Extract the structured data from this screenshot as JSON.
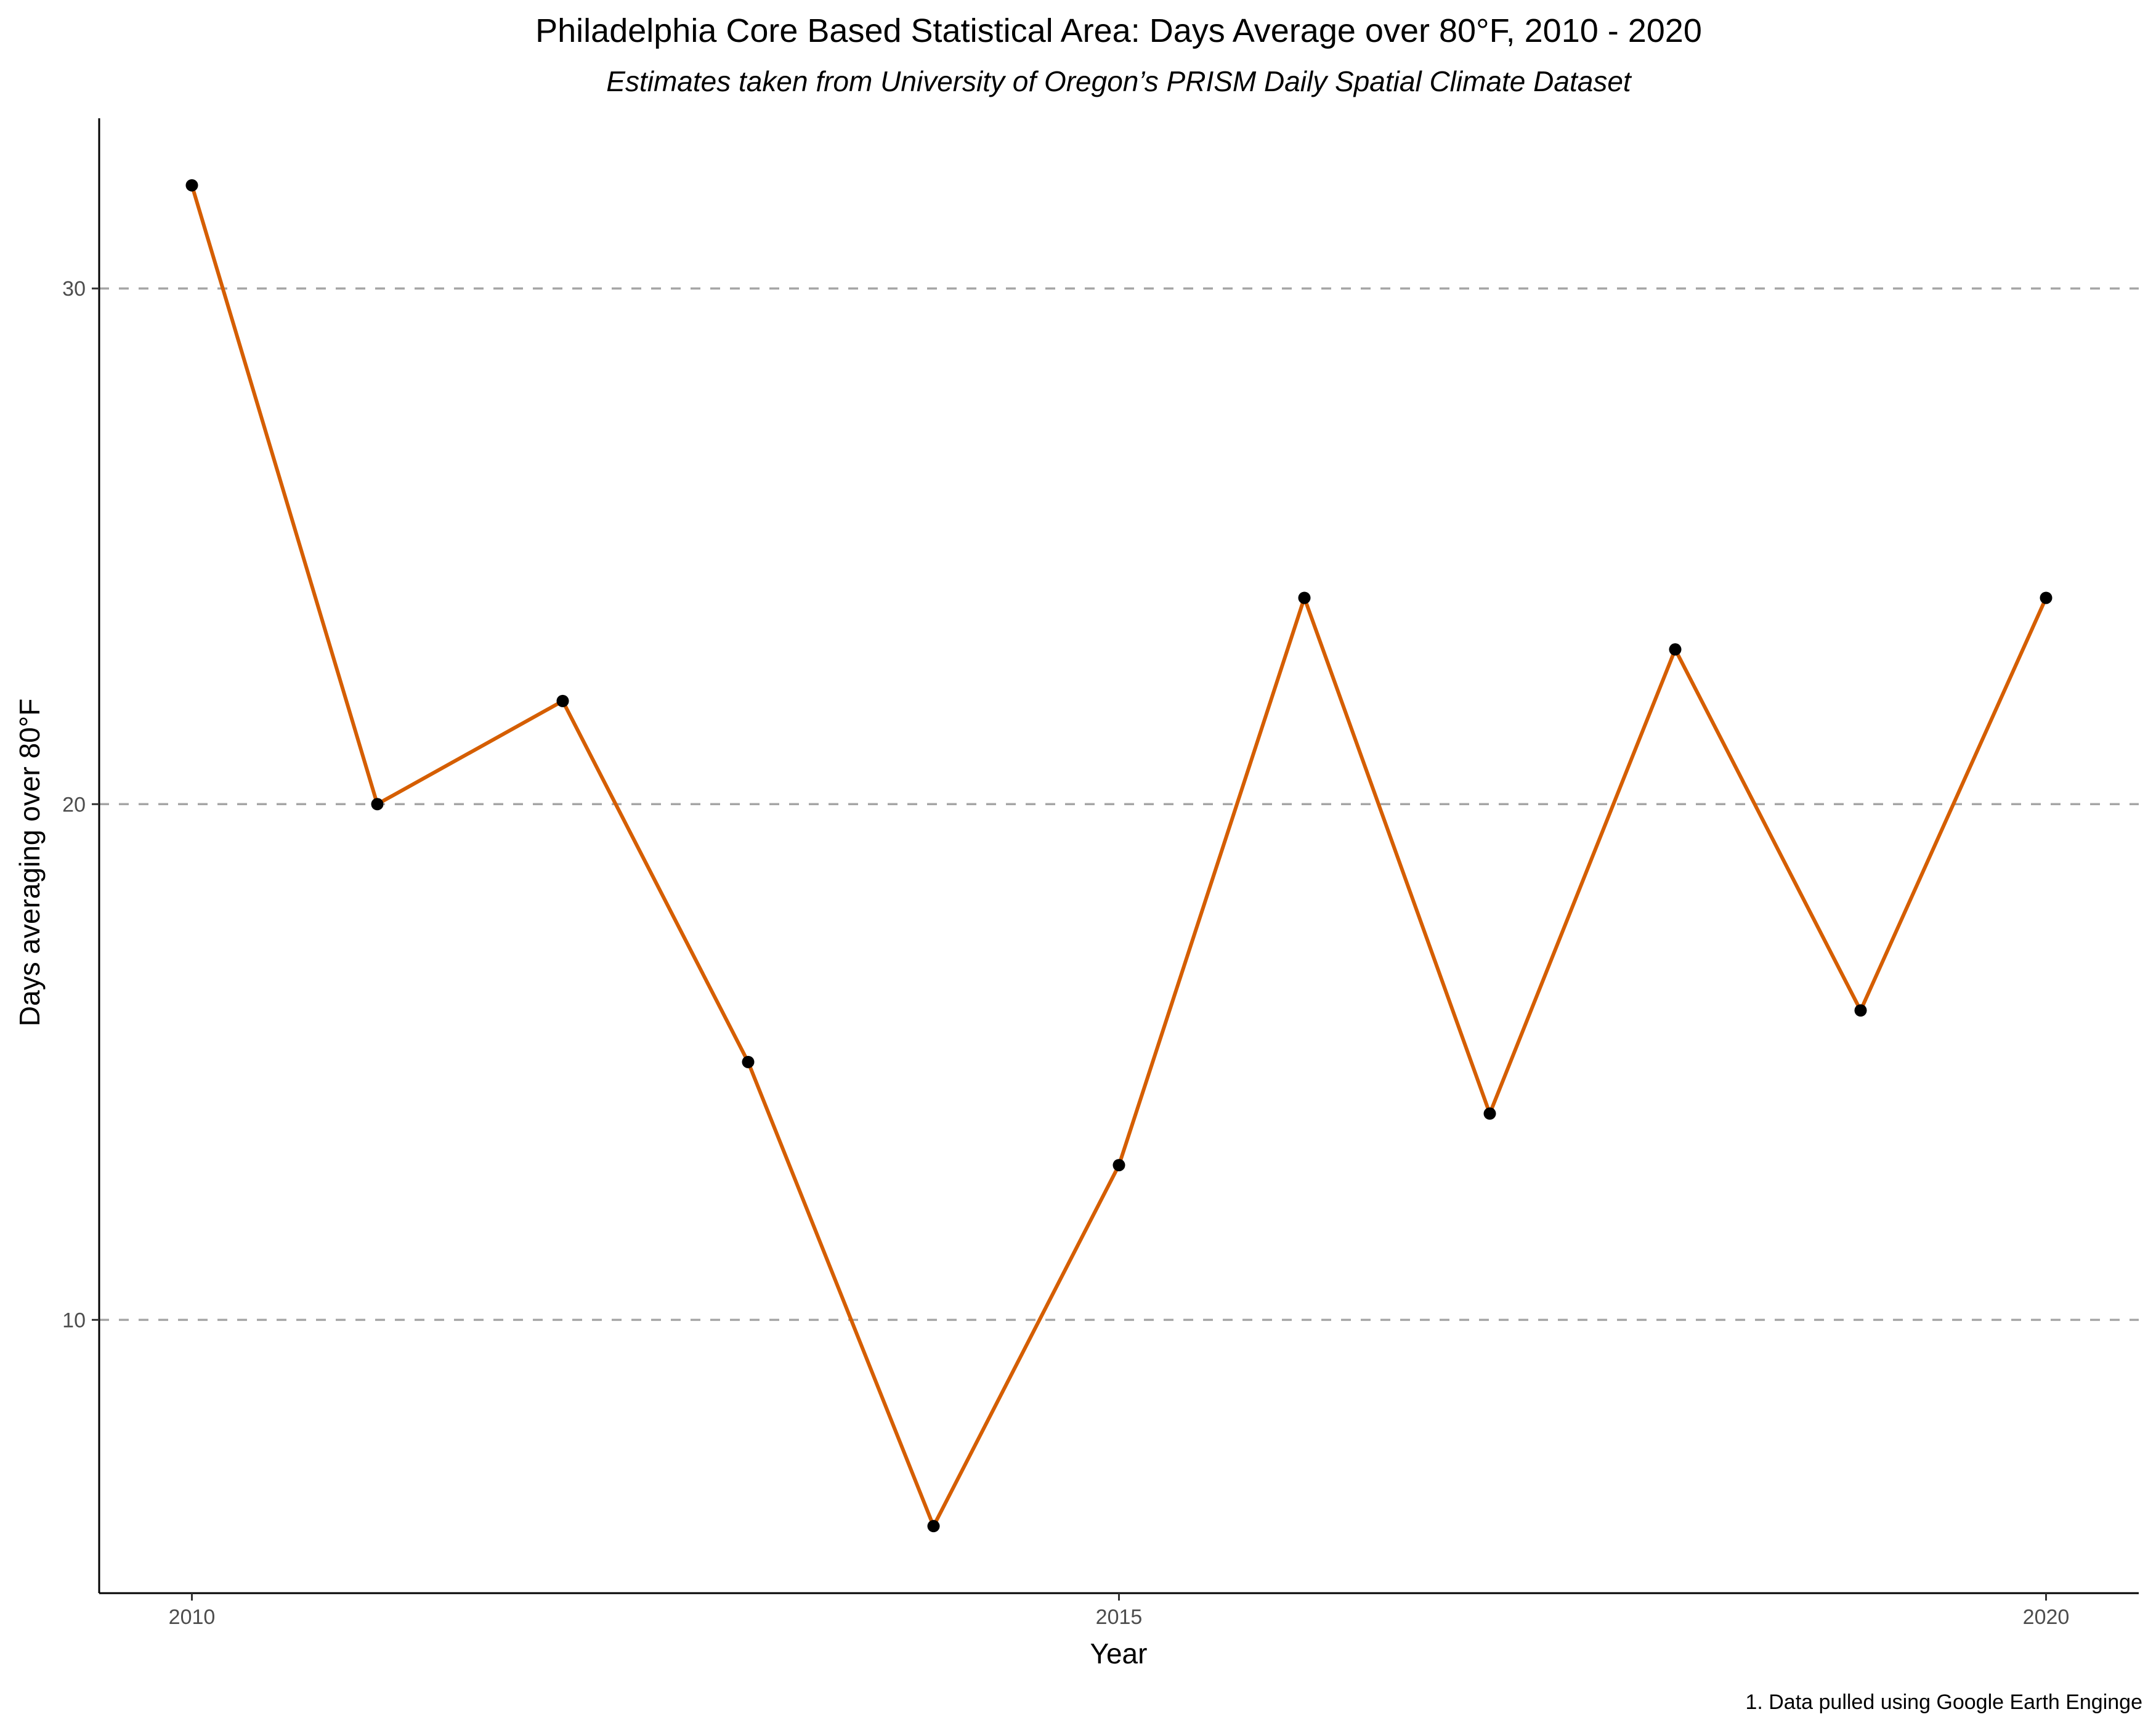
{
  "chart_data": {
    "type": "line",
    "title": "Philadelphia Core Based Statistical Area: Days Average over 80°F, 2010 - 2020",
    "subtitle": "Estimates taken from University of Oregon’s PRISM Daily Spatial Climate Dataset",
    "xlabel": "Year",
    "ylabel": "Days averaging over 80°F",
    "caption": "1. Data pulled using Google Earth Enginge",
    "x": [
      2010,
      2011,
      2012,
      2013,
      2014,
      2015,
      2016,
      2017,
      2018,
      2019,
      2020
    ],
    "series": [
      {
        "values": [
          32,
          20,
          22,
          15,
          6,
          13,
          24,
          14,
          23,
          16,
          24
        ]
      }
    ],
    "x_ticks": [
      "2010",
      "2015",
      "2020"
    ],
    "y_ticks": [
      "10",
      "20",
      "30"
    ],
    "xlim": [
      2009.5,
      2020.5
    ],
    "ylim": [
      4.7,
      33.3
    ],
    "grid": "horizontal dashed major lines",
    "line_color": "#D55E00",
    "point_color": "#000000",
    "gridline_color": "#a6a6a6"
  }
}
